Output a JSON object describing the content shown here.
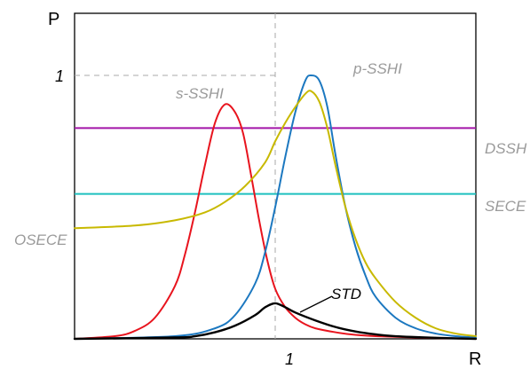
{
  "chart_data": {
    "type": "line",
    "xlabel": "R",
    "ylabel": "P",
    "xlim": [
      0,
      2
    ],
    "ylim": [
      0,
      1.08
    ],
    "ticks": {
      "x_one": "1",
      "y_one": "1"
    },
    "reference_lines": {
      "x": 1,
      "y": 1,
      "style": "dashed",
      "color": "#aaaaaa"
    },
    "grid": false,
    "series": [
      {
        "name": "s-SSHI",
        "color": "#e8141e",
        "label": "s-SSHI",
        "x": [
          0,
          0.2,
          0.3,
          0.4,
          0.5,
          0.55,
          0.6,
          0.65,
          0.7,
          0.75,
          0.8,
          0.84,
          0.88,
          0.92,
          0.96,
          1.0,
          1.05,
          1.1,
          1.15,
          1.2,
          1.3,
          1.4,
          1.5,
          1.7,
          2.0
        ],
        "y": [
          0.0,
          0.01,
          0.03,
          0.08,
          0.2,
          0.32,
          0.48,
          0.66,
          0.82,
          0.89,
          0.86,
          0.78,
          0.62,
          0.45,
          0.3,
          0.19,
          0.12,
          0.08,
          0.055,
          0.04,
          0.025,
          0.015,
          0.01,
          0.005,
          0.0
        ]
      },
      {
        "name": "p-SSHI",
        "color": "#1c78c0",
        "label": "p-SSHI",
        "x": [
          0,
          0.5,
          0.7,
          0.8,
          0.9,
          0.95,
          1.0,
          1.05,
          1.1,
          1.15,
          1.18,
          1.22,
          1.26,
          1.3,
          1.35,
          1.4,
          1.45,
          1.5,
          1.6,
          1.7,
          1.8,
          1.9,
          2.0
        ],
        "y": [
          0.0,
          0.01,
          0.04,
          0.09,
          0.21,
          0.33,
          0.5,
          0.69,
          0.86,
          0.98,
          1.0,
          0.98,
          0.88,
          0.7,
          0.5,
          0.35,
          0.24,
          0.16,
          0.08,
          0.04,
          0.02,
          0.01,
          0.005
        ]
      },
      {
        "name": "OSECE",
        "color": "#c8b900",
        "label": "OSECE",
        "x": [
          0,
          0.3,
          0.5,
          0.65,
          0.75,
          0.85,
          0.95,
          1.0,
          1.05,
          1.1,
          1.15,
          1.18,
          1.22,
          1.26,
          1.3,
          1.35,
          1.4,
          1.45,
          1.5,
          1.6,
          1.7,
          1.8,
          1.9,
          2.0
        ],
        "y": [
          0.42,
          0.43,
          0.45,
          0.48,
          0.52,
          0.58,
          0.67,
          0.75,
          0.82,
          0.88,
          0.93,
          0.94,
          0.9,
          0.8,
          0.66,
          0.5,
          0.38,
          0.29,
          0.23,
          0.14,
          0.08,
          0.04,
          0.02,
          0.01
        ]
      },
      {
        "name": "STD",
        "color": "#000000",
        "label": "STD",
        "x": [
          0,
          0.5,
          0.6,
          0.7,
          0.8,
          0.9,
          0.95,
          1.0,
          1.05,
          1.1,
          1.2,
          1.3,
          1.4,
          1.5,
          1.6,
          1.8,
          2.0
        ],
        "y": [
          0.0,
          0.005,
          0.01,
          0.025,
          0.05,
          0.09,
          0.12,
          0.135,
          0.12,
          0.1,
          0.07,
          0.045,
          0.028,
          0.017,
          0.01,
          0.004,
          0.0
        ]
      }
    ],
    "hlines": [
      {
        "name": "DSSH",
        "color": "#a314a8",
        "y": 0.8,
        "label": "DSSH"
      },
      {
        "name": "SECE",
        "color": "#1ec0bf",
        "y": 0.55,
        "label": "SECE"
      }
    ]
  }
}
